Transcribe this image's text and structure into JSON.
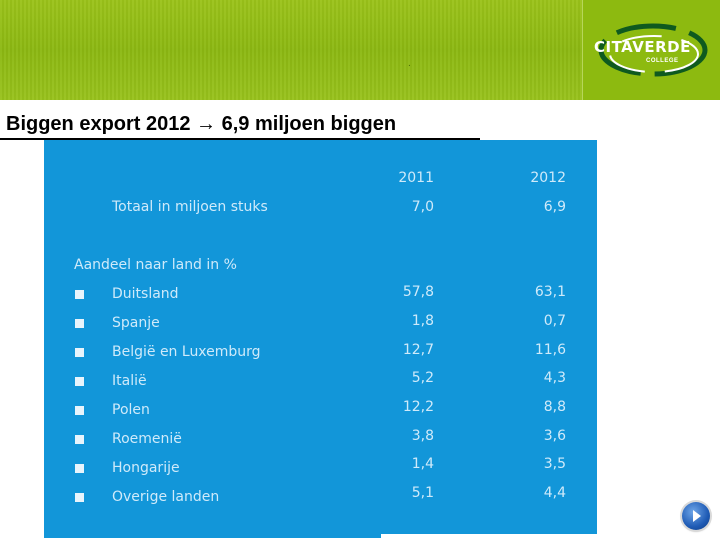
{
  "header": {
    "dot": ".",
    "logo_name": "CITAVERDE",
    "logo_sub": "COLLEGE"
  },
  "slide": {
    "title": "Biggen export 2012 → 6,9 miljoen biggen"
  },
  "table": {
    "years": [
      "2011",
      "2012"
    ],
    "total": {
      "label": "Totaal in miljoen stuks",
      "v2011": "7,0",
      "v2012": "6,9"
    },
    "section_label": "Aandeel naar land in %",
    "rows": [
      {
        "country": "Duitsland",
        "v2011": "57,8",
        "v2012": "63,1"
      },
      {
        "country": "Spanje",
        "v2011": "1,8",
        "v2012": "0,7"
      },
      {
        "country": "België en Luxemburg",
        "v2011": "12,7",
        "v2012": "11,6"
      },
      {
        "country": "Italië",
        "v2011": "5,2",
        "v2012": "4,3"
      },
      {
        "country": "Polen",
        "v2011": "12,2",
        "v2012": "8,8"
      },
      {
        "country": "Roemenië",
        "v2011": "3,8",
        "v2012": "3,6"
      },
      {
        "country": "Hongarije",
        "v2011": "1,4",
        "v2012": "3,5"
      },
      {
        "country": "Overige landen",
        "v2011": "5,1",
        "v2012": "4,4"
      }
    ]
  },
  "nav": {
    "next_icon": "play-next-icon"
  },
  "colors": {
    "banner": "#8cb812",
    "panel": "#1296d9",
    "panel_text": "#cfeafa"
  }
}
